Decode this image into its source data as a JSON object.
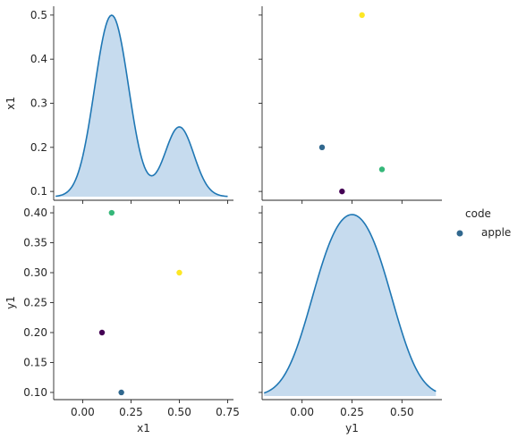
{
  "chart_data": {
    "type": "pairplot",
    "variables": [
      "x1",
      "y1"
    ],
    "points": [
      {
        "x1": 0.2,
        "y1": 0.1,
        "color": "#31688e"
      },
      {
        "x1": 0.1,
        "y1": 0.2,
        "color": "#440154"
      },
      {
        "x1": 0.5,
        "y1": 0.3,
        "color": "#fde725"
      },
      {
        "x1": 0.15,
        "y1": 0.4,
        "color": "#35b779"
      }
    ],
    "diag_kde_fill": "#c6dbee",
    "diag_kde_line": "#1f77b4",
    "x1_ticks": [
      "0.00",
      "0.25",
      "0.50",
      "0.75"
    ],
    "x1_tick_values": [
      0,
      0.25,
      0.5,
      0.75
    ],
    "x1_ylabel_ticks": [
      "0.1",
      "0.2",
      "0.3",
      "0.4",
      "0.5"
    ],
    "x1_ylabel_tick_values": [
      0.1,
      0.2,
      0.3,
      0.4,
      0.5
    ],
    "y1_ticks": [
      "0.00",
      "0.25",
      "0.50"
    ],
    "y1_tick_values": [
      0,
      0.25,
      0.5
    ],
    "y1_ylabel_ticks": [
      "0.10",
      "0.15",
      "0.20",
      "0.25",
      "0.30",
      "0.35",
      "0.40"
    ],
    "y1_ylabel_tick_values": [
      0.1,
      0.15,
      0.2,
      0.25,
      0.3,
      0.35,
      0.4
    ],
    "x1_xlim": [
      -0.15,
      0.78
    ],
    "x1_ylim": [
      0.08,
      0.52
    ],
    "y1_xlim": [
      -0.2,
      0.7
    ],
    "y1_ylim": [
      0.088,
      0.412
    ],
    "xlabels": [
      "x1",
      "y1"
    ],
    "ylabels": [
      "x1",
      "y1"
    ],
    "grid": false,
    "legend": {
      "title": "code",
      "entries": [
        {
          "label": "apple",
          "color": "#31688e"
        }
      ],
      "position": "right"
    }
  }
}
